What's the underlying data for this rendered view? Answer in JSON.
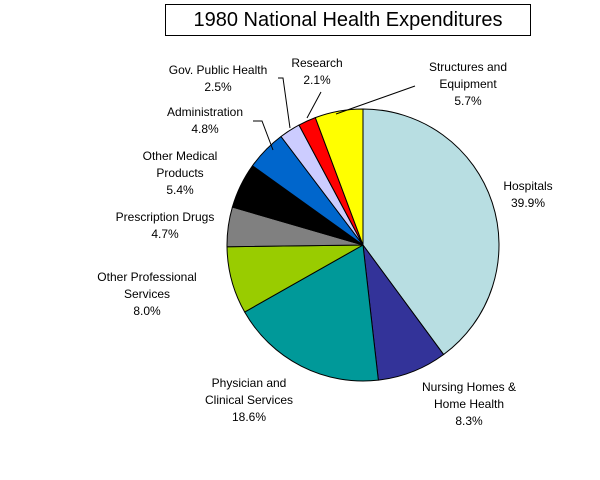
{
  "chart_data": {
    "type": "pie",
    "title": "1980 National Health Expenditures",
    "slices": [
      {
        "label": [
          "Hospitals"
        ],
        "value": 39.9,
        "value_label": "39.9%",
        "color": "#B8DEE2"
      },
      {
        "label": [
          "Nursing Homes &",
          "Home Health"
        ],
        "value": 8.3,
        "value_label": "8.3%",
        "color": "#333399"
      },
      {
        "label": [
          "Physician and",
          "Clinical Services"
        ],
        "value": 18.6,
        "value_label": "18.6%",
        "color": "#009999"
      },
      {
        "label": [
          "Other Professional",
          "Services"
        ],
        "value": 8.0,
        "value_label": "8.0%",
        "color": "#99CC00"
      },
      {
        "label": [
          "Prescription Drugs"
        ],
        "value": 4.7,
        "value_label": "4.7%",
        "color": "#808080"
      },
      {
        "label": [
          "Other Medical",
          "Products"
        ],
        "value": 5.4,
        "value_label": "5.4%",
        "color": "#000000"
      },
      {
        "label": [
          "Administration"
        ],
        "value": 4.8,
        "value_label": "4.8%",
        "color": "#0066CC"
      },
      {
        "label": [
          "Gov. Public Health"
        ],
        "value": 2.5,
        "value_label": "2.5%",
        "color": "#CCCCFF"
      },
      {
        "label": [
          "Research"
        ],
        "value": 2.1,
        "value_label": "2.1%",
        "color": "#FF0000"
      },
      {
        "label": [
          "Structures and",
          "Equipment"
        ],
        "value": 5.7,
        "value_label": "5.7%",
        "color": "#FFFF00"
      }
    ],
    "start_angle": "12 o'clock",
    "direction": "clockwise",
    "legend": "none"
  }
}
